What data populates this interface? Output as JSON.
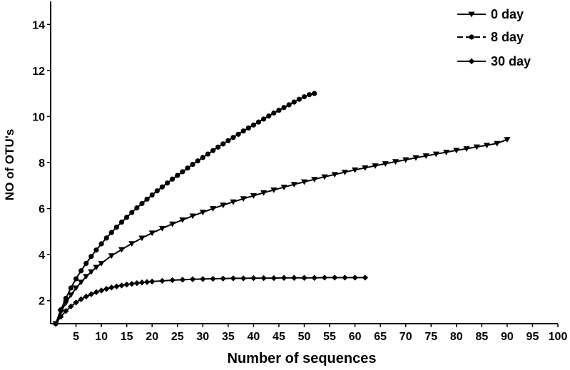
{
  "chart_data": {
    "type": "line",
    "title": "",
    "xlabel": "Number of sequences",
    "ylabel": "NO of OTU's",
    "xlim": [
      0,
      100
    ],
    "ylim": [
      1,
      15
    ],
    "x_ticks": [
      5,
      10,
      15,
      20,
      25,
      30,
      35,
      40,
      45,
      50,
      55,
      60,
      65,
      70,
      75,
      80,
      85,
      90,
      95,
      100
    ],
    "y_ticks": [
      2,
      4,
      6,
      8,
      10,
      12,
      14
    ],
    "grid": false,
    "legend_position": "top-right",
    "series": [
      {
        "name": "0 day",
        "marker": "triangle-down",
        "x": [
          1,
          2,
          3,
          4,
          5,
          6,
          7,
          8,
          9,
          10,
          12,
          14,
          16,
          18,
          20,
          22,
          24,
          26,
          28,
          30,
          32,
          34,
          36,
          38,
          40,
          42,
          44,
          46,
          48,
          50,
          52,
          54,
          56,
          58,
          60,
          62,
          64,
          66,
          68,
          70,
          72,
          74,
          76,
          78,
          80,
          82,
          84,
          86,
          88,
          90
        ],
        "y": [
          1.0,
          1.5,
          1.9,
          2.25,
          2.55,
          2.8,
          3.05,
          3.25,
          3.45,
          3.62,
          3.95,
          4.22,
          4.48,
          4.72,
          4.94,
          5.14,
          5.33,
          5.51,
          5.68,
          5.84,
          6.0,
          6.15,
          6.29,
          6.43,
          6.56,
          6.69,
          6.81,
          6.93,
          7.05,
          7.16,
          7.27,
          7.38,
          7.48,
          7.58,
          7.68,
          7.77,
          7.86,
          7.95,
          8.04,
          8.12,
          8.21,
          8.29,
          8.37,
          8.45,
          8.53,
          8.6,
          8.68,
          8.75,
          8.83,
          9.0
        ]
      },
      {
        "name": "8 day",
        "marker": "circle",
        "x": [
          1,
          2,
          3,
          4,
          5,
          6,
          7,
          8,
          9,
          10,
          11,
          12,
          13,
          14,
          15,
          16,
          17,
          18,
          19,
          20,
          21,
          22,
          23,
          24,
          25,
          26,
          27,
          28,
          29,
          30,
          31,
          32,
          33,
          34,
          35,
          36,
          37,
          38,
          39,
          40,
          41,
          42,
          43,
          44,
          45,
          46,
          47,
          48,
          49,
          50,
          51,
          52
        ],
        "y": [
          1.0,
          1.6,
          2.1,
          2.55,
          2.95,
          3.3,
          3.62,
          3.92,
          4.2,
          4.47,
          4.72,
          4.96,
          5.19,
          5.41,
          5.62,
          5.83,
          6.03,
          6.22,
          6.41,
          6.59,
          6.77,
          6.94,
          7.11,
          7.28,
          7.44,
          7.6,
          7.76,
          7.92,
          8.07,
          8.22,
          8.37,
          8.52,
          8.67,
          8.81,
          8.95,
          9.09,
          9.23,
          9.37,
          9.5,
          9.63,
          9.76,
          9.89,
          10.02,
          10.15,
          10.27,
          10.39,
          10.51,
          10.63,
          10.75,
          10.86,
          10.95,
          11.0
        ]
      },
      {
        "name": "30 day",
        "marker": "diamond",
        "x": [
          1,
          2,
          3,
          4,
          5,
          6,
          7,
          8,
          9,
          10,
          11,
          12,
          13,
          14,
          15,
          16,
          17,
          18,
          19,
          20,
          22,
          24,
          26,
          28,
          30,
          32,
          34,
          36,
          38,
          40,
          42,
          44,
          46,
          48,
          50,
          52,
          54,
          56,
          58,
          60,
          62
        ],
        "y": [
          1.0,
          1.3,
          1.55,
          1.75,
          1.92,
          2.06,
          2.18,
          2.28,
          2.37,
          2.44,
          2.51,
          2.57,
          2.62,
          2.66,
          2.7,
          2.73,
          2.76,
          2.79,
          2.81,
          2.83,
          2.86,
          2.89,
          2.91,
          2.93,
          2.94,
          2.95,
          2.96,
          2.97,
          2.97,
          2.98,
          2.98,
          2.98,
          2.99,
          2.99,
          2.99,
          2.99,
          3.0,
          3.0,
          3.0,
          3.0,
          3.0
        ]
      }
    ]
  }
}
